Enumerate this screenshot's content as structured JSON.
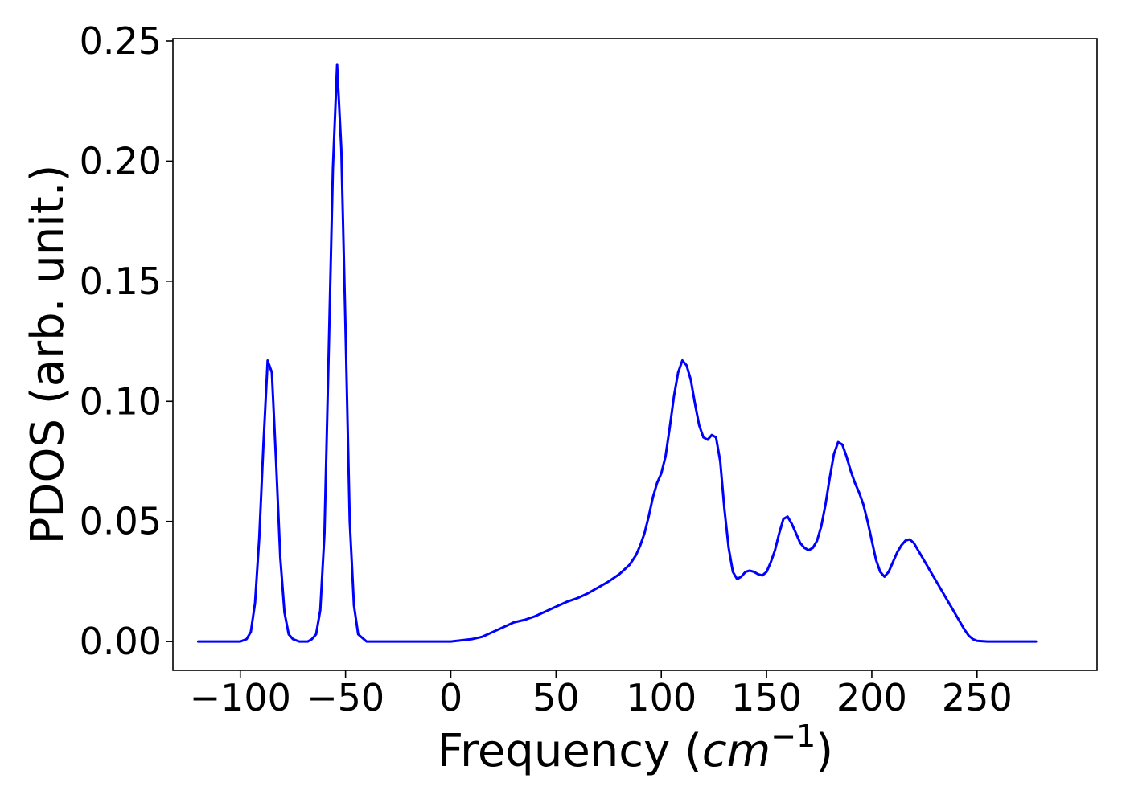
{
  "chart_data": {
    "type": "line",
    "title": "",
    "xlabel": "Frequency (cm⁻¹)",
    "ylabel": "PDOS (arb. unit.)",
    "xlim": [
      -132,
      307
    ],
    "ylim": [
      -0.012,
      0.251
    ],
    "x_ticks": [
      -100,
      -50,
      0,
      50,
      100,
      150,
      200,
      250
    ],
    "x_tick_labels": [
      "−100",
      "−50",
      "0",
      "50",
      "100",
      "150",
      "200",
      "250"
    ],
    "y_ticks": [
      0.0,
      0.05,
      0.1,
      0.15,
      0.2,
      0.25
    ],
    "y_tick_labels": [
      "0.00",
      "0.05",
      "0.10",
      "0.15",
      "0.20",
      "0.25"
    ],
    "grid": false,
    "legend": "none",
    "series": [
      {
        "color": "#0000ff",
        "x": [
          -120,
          -100,
          -97,
          -95,
          -93,
          -91,
          -89,
          -87,
          -85,
          -83,
          -81,
          -79,
          -77,
          -75,
          -72,
          -68,
          -66,
          -64,
          -62,
          -60,
          -58,
          -56,
          -54,
          -52,
          -50,
          -48,
          -46,
          -44,
          -40,
          -30,
          -20,
          -10,
          0,
          5,
          10,
          15,
          20,
          25,
          30,
          35,
          40,
          45,
          50,
          55,
          60,
          65,
          70,
          75,
          80,
          85,
          88,
          90,
          92,
          94,
          96,
          98,
          100,
          102,
          104,
          106,
          108,
          110,
          112,
          114,
          116,
          118,
          120,
          122,
          124,
          126,
          128,
          130,
          132,
          134,
          136,
          138,
          140,
          142,
          144,
          146,
          148,
          150,
          152,
          154,
          156,
          158,
          160,
          162,
          164,
          166,
          168,
          170,
          172,
          174,
          176,
          178,
          180,
          182,
          184,
          186,
          188,
          190,
          192,
          194,
          196,
          198,
          200,
          202,
          204,
          206,
          208,
          210,
          212,
          214,
          216,
          218,
          220,
          222,
          224,
          226,
          228,
          230,
          232,
          234,
          236,
          238,
          240,
          242,
          244,
          246,
          248,
          250,
          255,
          265,
          278
        ],
        "y": [
          0.0,
          0.0,
          0.001,
          0.004,
          0.016,
          0.043,
          0.082,
          0.117,
          0.112,
          0.075,
          0.035,
          0.012,
          0.003,
          0.001,
          0.0,
          0.0,
          0.001,
          0.003,
          0.013,
          0.045,
          0.12,
          0.197,
          0.24,
          0.205,
          0.13,
          0.05,
          0.015,
          0.003,
          0.0,
          0.0,
          0.0,
          0.0,
          0.0,
          0.0005,
          0.001,
          0.002,
          0.004,
          0.006,
          0.008,
          0.009,
          0.0105,
          0.0125,
          0.0145,
          0.0165,
          0.018,
          0.02,
          0.0225,
          0.025,
          0.028,
          0.032,
          0.036,
          0.04,
          0.045,
          0.052,
          0.06,
          0.066,
          0.07,
          0.077,
          0.089,
          0.102,
          0.112,
          0.117,
          0.115,
          0.109,
          0.099,
          0.09,
          0.085,
          0.084,
          0.086,
          0.085,
          0.075,
          0.055,
          0.039,
          0.029,
          0.026,
          0.027,
          0.029,
          0.0295,
          0.029,
          0.028,
          0.0275,
          0.029,
          0.033,
          0.038,
          0.045,
          0.051,
          0.052,
          0.049,
          0.045,
          0.041,
          0.039,
          0.038,
          0.039,
          0.042,
          0.048,
          0.057,
          0.068,
          0.078,
          0.083,
          0.082,
          0.077,
          0.071,
          0.066,
          0.062,
          0.057,
          0.05,
          0.042,
          0.034,
          0.029,
          0.027,
          0.029,
          0.033,
          0.037,
          0.04,
          0.042,
          0.0425,
          0.041,
          0.038,
          0.035,
          0.032,
          0.029,
          0.026,
          0.023,
          0.02,
          0.017,
          0.014,
          0.011,
          0.008,
          0.005,
          0.0025,
          0.001,
          0.0003,
          0.0,
          0.0,
          0.0
        ]
      }
    ]
  }
}
